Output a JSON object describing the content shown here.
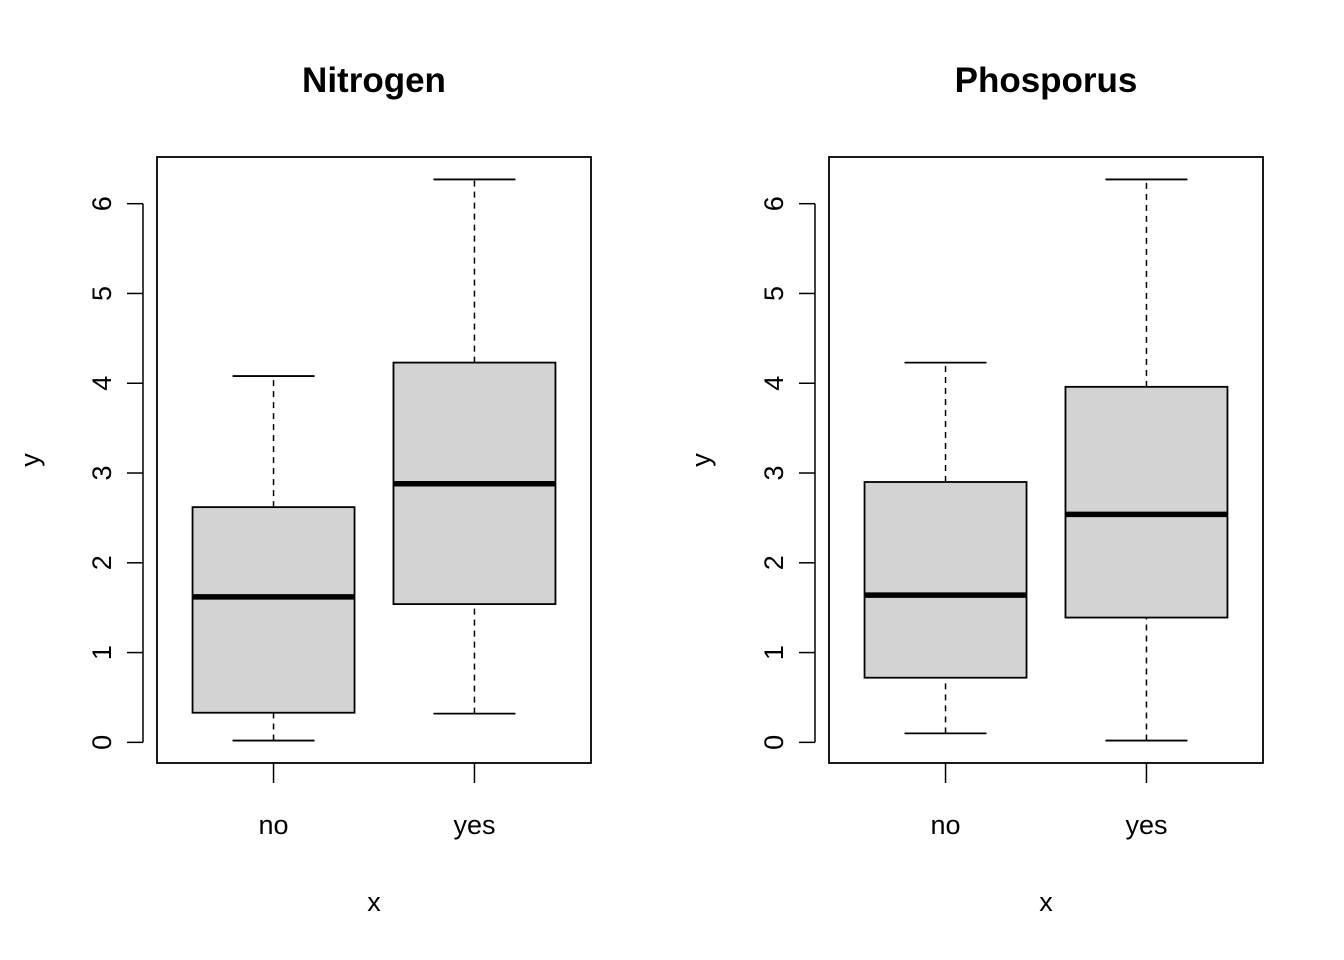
{
  "figure": {
    "background": "#ffffff",
    "box_fill": "#d3d3d3",
    "line_color": "#000000"
  },
  "chart_data": [
    {
      "type": "boxplot",
      "title": "Nitrogen",
      "xlabel": "x",
      "ylabel": "y",
      "categories": [
        "no",
        "yes"
      ],
      "y_ticks": [
        0,
        1,
        2,
        3,
        4,
        5,
        6
      ],
      "ylim": [
        -0.23,
        6.52
      ],
      "grid": false,
      "boxes": [
        {
          "category": "no",
          "whisker_low": 0.02,
          "q1": 0.33,
          "median": 1.62,
          "q3": 2.62,
          "whisker_high": 4.08
        },
        {
          "category": "yes",
          "whisker_low": 0.32,
          "q1": 1.54,
          "median": 2.88,
          "q3": 4.23,
          "whisker_high": 6.27
        }
      ]
    },
    {
      "type": "boxplot",
      "title": "Phosporus",
      "xlabel": "x",
      "ylabel": "y",
      "categories": [
        "no",
        "yes"
      ],
      "y_ticks": [
        0,
        1,
        2,
        3,
        4,
        5,
        6
      ],
      "ylim": [
        -0.23,
        6.52
      ],
      "grid": false,
      "boxes": [
        {
          "category": "no",
          "whisker_low": 0.1,
          "q1": 0.72,
          "median": 1.64,
          "q3": 2.9,
          "whisker_high": 4.23
        },
        {
          "category": "yes",
          "whisker_low": 0.02,
          "q1": 1.39,
          "median": 2.54,
          "q3": 3.96,
          "whisker_high": 6.27
        }
      ]
    }
  ]
}
